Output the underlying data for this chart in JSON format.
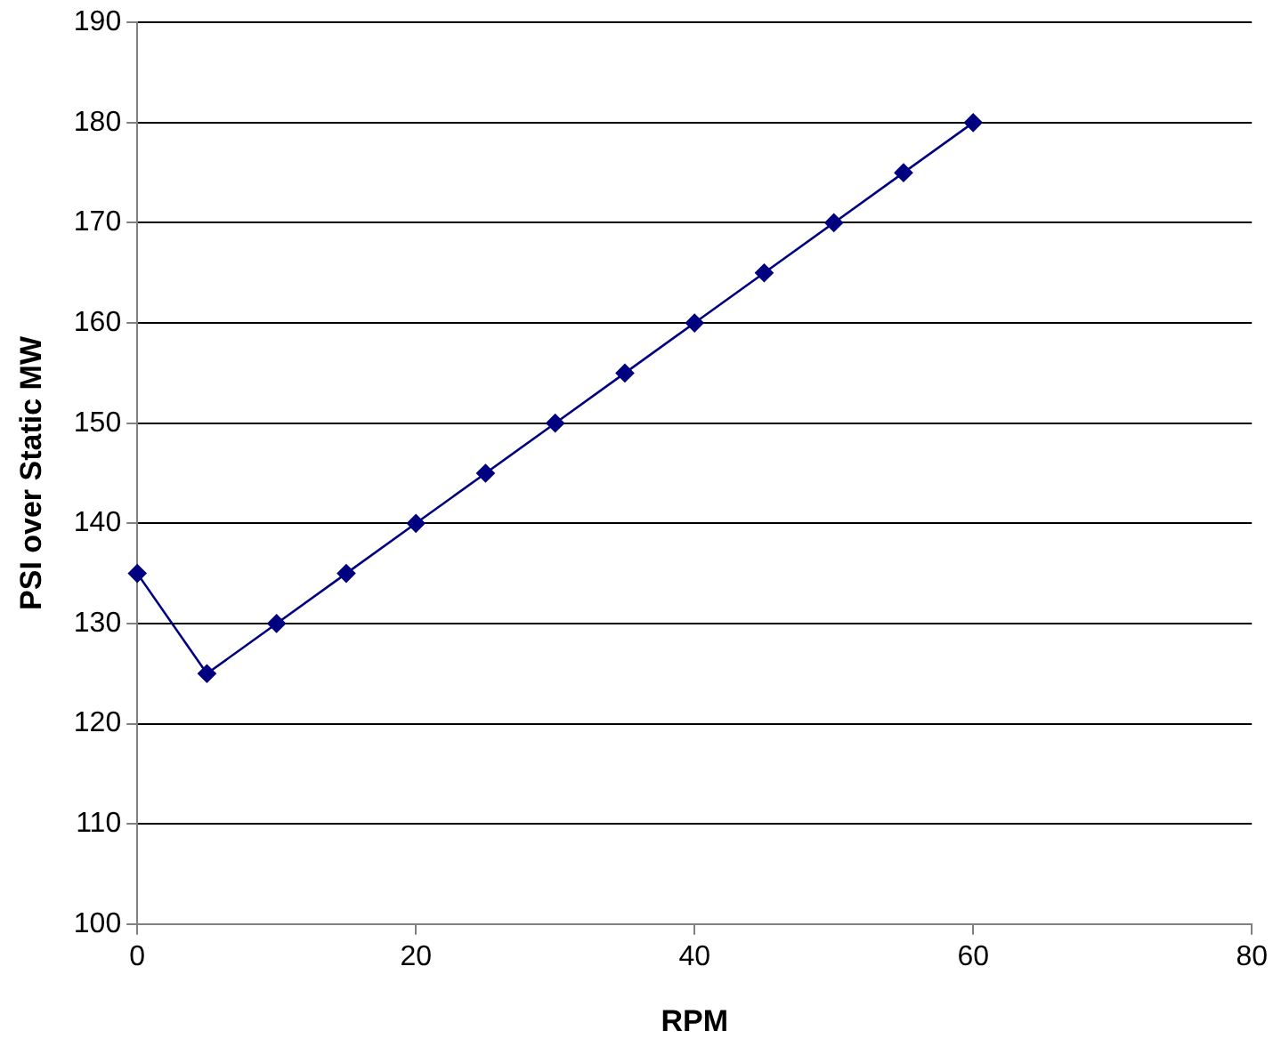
{
  "chart_data": {
    "type": "line",
    "xlabel": "RPM",
    "ylabel": "PSI over Static MW",
    "x": [
      0,
      5,
      10,
      15,
      20,
      25,
      30,
      35,
      40,
      45,
      50,
      55,
      60
    ],
    "series": [
      {
        "color": "#000080",
        "values": [
          135,
          125,
          130,
          135,
          140,
          145,
          150,
          155,
          160,
          165,
          170,
          175,
          180
        ]
      }
    ],
    "xlim": [
      0,
      80
    ],
    "xticks": [
      0,
      20,
      40,
      60,
      80
    ],
    "ylim": [
      100,
      190
    ],
    "yticks": [
      100,
      110,
      120,
      130,
      140,
      150,
      160,
      170,
      180,
      190
    ],
    "grid": "y",
    "legend": false,
    "marker": "diamond",
    "line_style": "solid"
  }
}
